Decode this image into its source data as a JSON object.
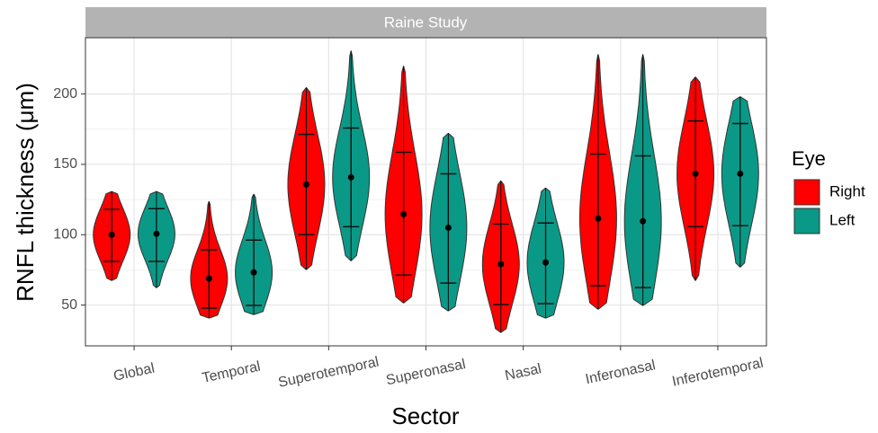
{
  "chart_data": {
    "type": "violin",
    "title": "Raine Study",
    "x_label": "Sector",
    "y_label": "RNFL thickness (μm)",
    "legend_title": "Eye",
    "categories": [
      "Global",
      "Temporal",
      "Superotemporal",
      "Superonasal",
      "Nasal",
      "Inferonasal",
      "Inferotemporal"
    ],
    "series": [
      {
        "name": "Right",
        "color": "#ff0000",
        "values": [
          100,
          68.8,
          135.7,
          114.6,
          79,
          111.5,
          143.3
        ],
        "lower": [
          81,
          47.8,
          100,
          71.3,
          50.3,
          63.7,
          105.7
        ],
        "upper": [
          118,
          89.2,
          171.3,
          158.6,
          107.6,
          157.3,
          180.9
        ],
        "min": [
          67.5,
          40.8,
          75.2,
          51.6,
          30.6,
          47.1,
          67.5
        ],
        "max": [
          130.6,
          123.6,
          204.5,
          219.7,
          138.2,
          228,
          212
        ]
      },
      {
        "name": "Left",
        "color": "#0a9987",
        "values": [
          100.6,
          73.2,
          140.8,
          105,
          80.3,
          109.6,
          143.3
        ],
        "lower": [
          81,
          49.7,
          105.7,
          65.6,
          51,
          62.4,
          106.4
        ],
        "upper": [
          118.5,
          96.2,
          175.8,
          143.3,
          108.3,
          156,
          179
        ],
        "min": [
          62.4,
          43.3,
          81.5,
          45.9,
          40.8,
          49.7,
          77
        ],
        "max": [
          130.6,
          128.7,
          230.6,
          172,
          133.1,
          228,
          198
        ]
      }
    ],
    "ylim": [
      21,
      240
    ],
    "yticks": [
      50,
      100,
      150,
      200
    ],
    "grid": true,
    "legend_position": "right"
  }
}
